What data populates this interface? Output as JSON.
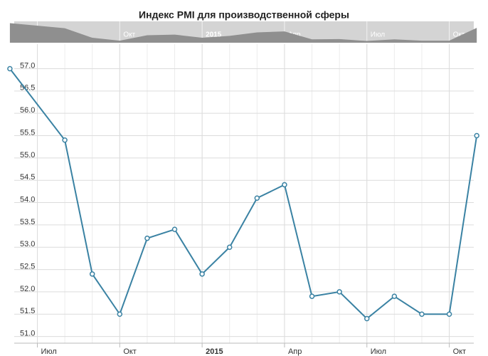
{
  "chart_data": {
    "type": "line",
    "title": "Индекс PMI для производственной сферы",
    "x": [
      0,
      2,
      3,
      4,
      5,
      6,
      7,
      8,
      9,
      10,
      11,
      12,
      13,
      14,
      15,
      16,
      17
    ],
    "series": [
      {
        "color": "#3a82a3",
        "values": [
          57.0,
          55.4,
          52.4,
          51.5,
          53.2,
          53.4,
          52.4,
          53.0,
          54.1,
          54.4,
          51.9,
          52.0,
          51.4,
          51.9,
          51.5,
          51.5,
          55.5
        ]
      }
    ],
    "xlim": [
      -0.36,
      17.41
    ],
    "xticks": [
      {
        "value": 1,
        "label": "Июл"
      },
      {
        "value": 4,
        "label": "Окт"
      },
      {
        "value": 7,
        "label": "2015"
      },
      {
        "value": 10,
        "label": "Апр"
      },
      {
        "value": 13,
        "label": "Июл"
      },
      {
        "value": 16,
        "label": "Окт"
      }
    ],
    "ylim": [
      50.85,
      57.55
    ],
    "yticks": [
      {
        "value": 51,
        "label": "51.0"
      },
      51.5,
      {
        "value": 52,
        "label": "52.0"
      },
      52.5,
      {
        "value": 53,
        "label": "53.0"
      },
      53.5,
      {
        "value": 54,
        "label": "54.0"
      },
      54.5,
      {
        "value": 55,
        "label": "55.0"
      },
      55.5,
      {
        "value": 56,
        "label": "56.0"
      },
      56.5,
      {
        "value": 57,
        "label": "57.0"
      }
    ],
    "grid": true
  }
}
